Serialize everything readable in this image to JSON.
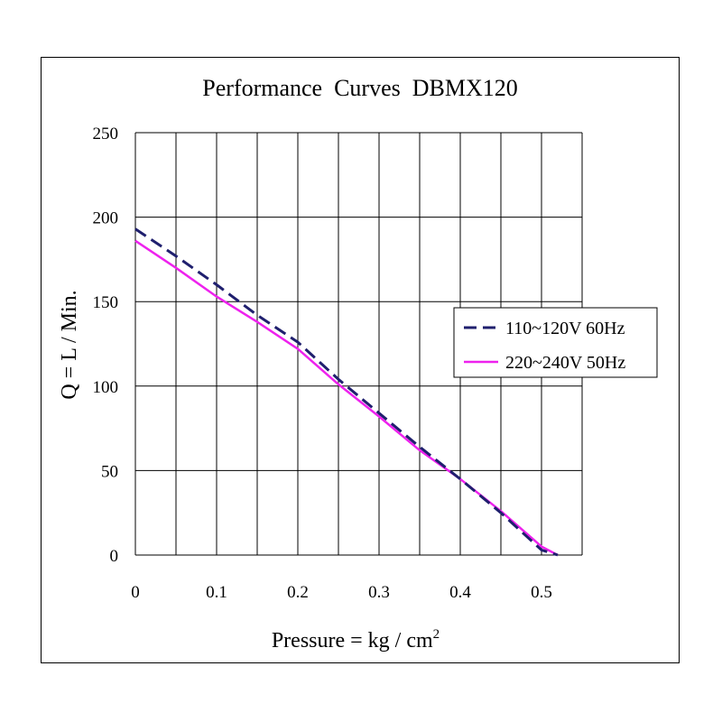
{
  "chart_data": {
    "type": "line",
    "title": "Performance  Curves  DBMX120",
    "xlabel": "Pressure = kg / cm",
    "xlabel_superscript": "2",
    "ylabel": "Q = L / Min.",
    "xlim": [
      0,
      0.55
    ],
    "ylim": [
      0,
      250
    ],
    "x_ticks": [
      0,
      0.1,
      0.2,
      0.3,
      0.4,
      0.5
    ],
    "x_tick_labels": [
      "0",
      "0.1",
      "0.2",
      "0.3",
      "0.4",
      "0.5"
    ],
    "y_ticks": [
      0,
      50,
      100,
      150,
      200,
      250
    ],
    "y_tick_labels": [
      "0",
      "50",
      "100",
      "150",
      "200",
      "250"
    ],
    "grid": true,
    "x_grid_step": 0.05,
    "legend_position": "right",
    "series": [
      {
        "name": "110~120V 60Hz",
        "color": "#1f1f6e",
        "style": "dashed",
        "x": [
          0,
          0.05,
          0.1,
          0.15,
          0.2,
          0.25,
          0.3,
          0.35,
          0.4,
          0.45,
          0.5,
          0.52
        ],
        "y": [
          193,
          177,
          160,
          142,
          126,
          104,
          84,
          64,
          45,
          25,
          3,
          0
        ]
      },
      {
        "name": "220~240V 50Hz",
        "color": "#ee22ee",
        "style": "solid",
        "x": [
          0,
          0.05,
          0.1,
          0.15,
          0.2,
          0.25,
          0.3,
          0.35,
          0.4,
          0.45,
          0.5,
          0.52
        ],
        "y": [
          186,
          170,
          153,
          138,
          122,
          101,
          82,
          62,
          45,
          26,
          5,
          0
        ]
      }
    ]
  }
}
